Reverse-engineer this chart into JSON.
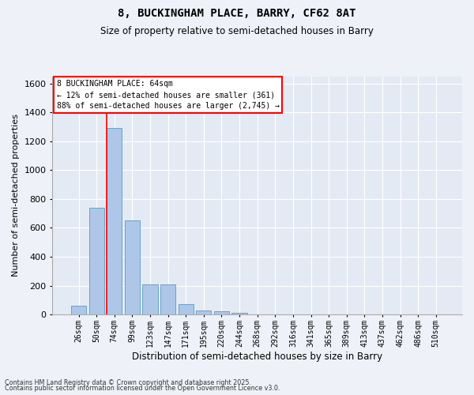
{
  "title_line1": "8, BUCKINGHAM PLACE, BARRY, CF62 8AT",
  "title_line2": "Size of property relative to semi-detached houses in Barry",
  "xlabel": "Distribution of semi-detached houses by size in Barry",
  "ylabel": "Number of semi-detached properties",
  "bar_labels": [
    "26sqm",
    "50sqm",
    "74sqm",
    "99sqm",
    "123sqm",
    "147sqm",
    "171sqm",
    "195sqm",
    "220sqm",
    "244sqm",
    "268sqm",
    "292sqm",
    "316sqm",
    "341sqm",
    "365sqm",
    "389sqm",
    "413sqm",
    "437sqm",
    "462sqm",
    "486sqm",
    "510sqm"
  ],
  "bar_values": [
    60,
    740,
    1290,
    650,
    210,
    210,
    70,
    30,
    20,
    10,
    0,
    0,
    0,
    0,
    0,
    0,
    0,
    0,
    0,
    0,
    0
  ],
  "bar_color": "#aec6e8",
  "bar_edge_color": "#5a9bc2",
  "red_line_x": 1.575,
  "ylim": [
    0,
    1650
  ],
  "yticks": [
    0,
    200,
    400,
    600,
    800,
    1000,
    1200,
    1400,
    1600
  ],
  "annotation_text_line1": "8 BUCKINGHAM PLACE: 64sqm",
  "annotation_text_line2": "← 12% of semi-detached houses are smaller (361)",
  "annotation_text_line3": "88% of semi-detached houses are larger (2,745) →",
  "footer_line1": "Contains HM Land Registry data © Crown copyright and database right 2025.",
  "footer_line2": "Contains public sector information licensed under the Open Government Licence v3.0.",
  "bg_color": "#eef2f8",
  "plot_bg_color": "#e4eaf4"
}
